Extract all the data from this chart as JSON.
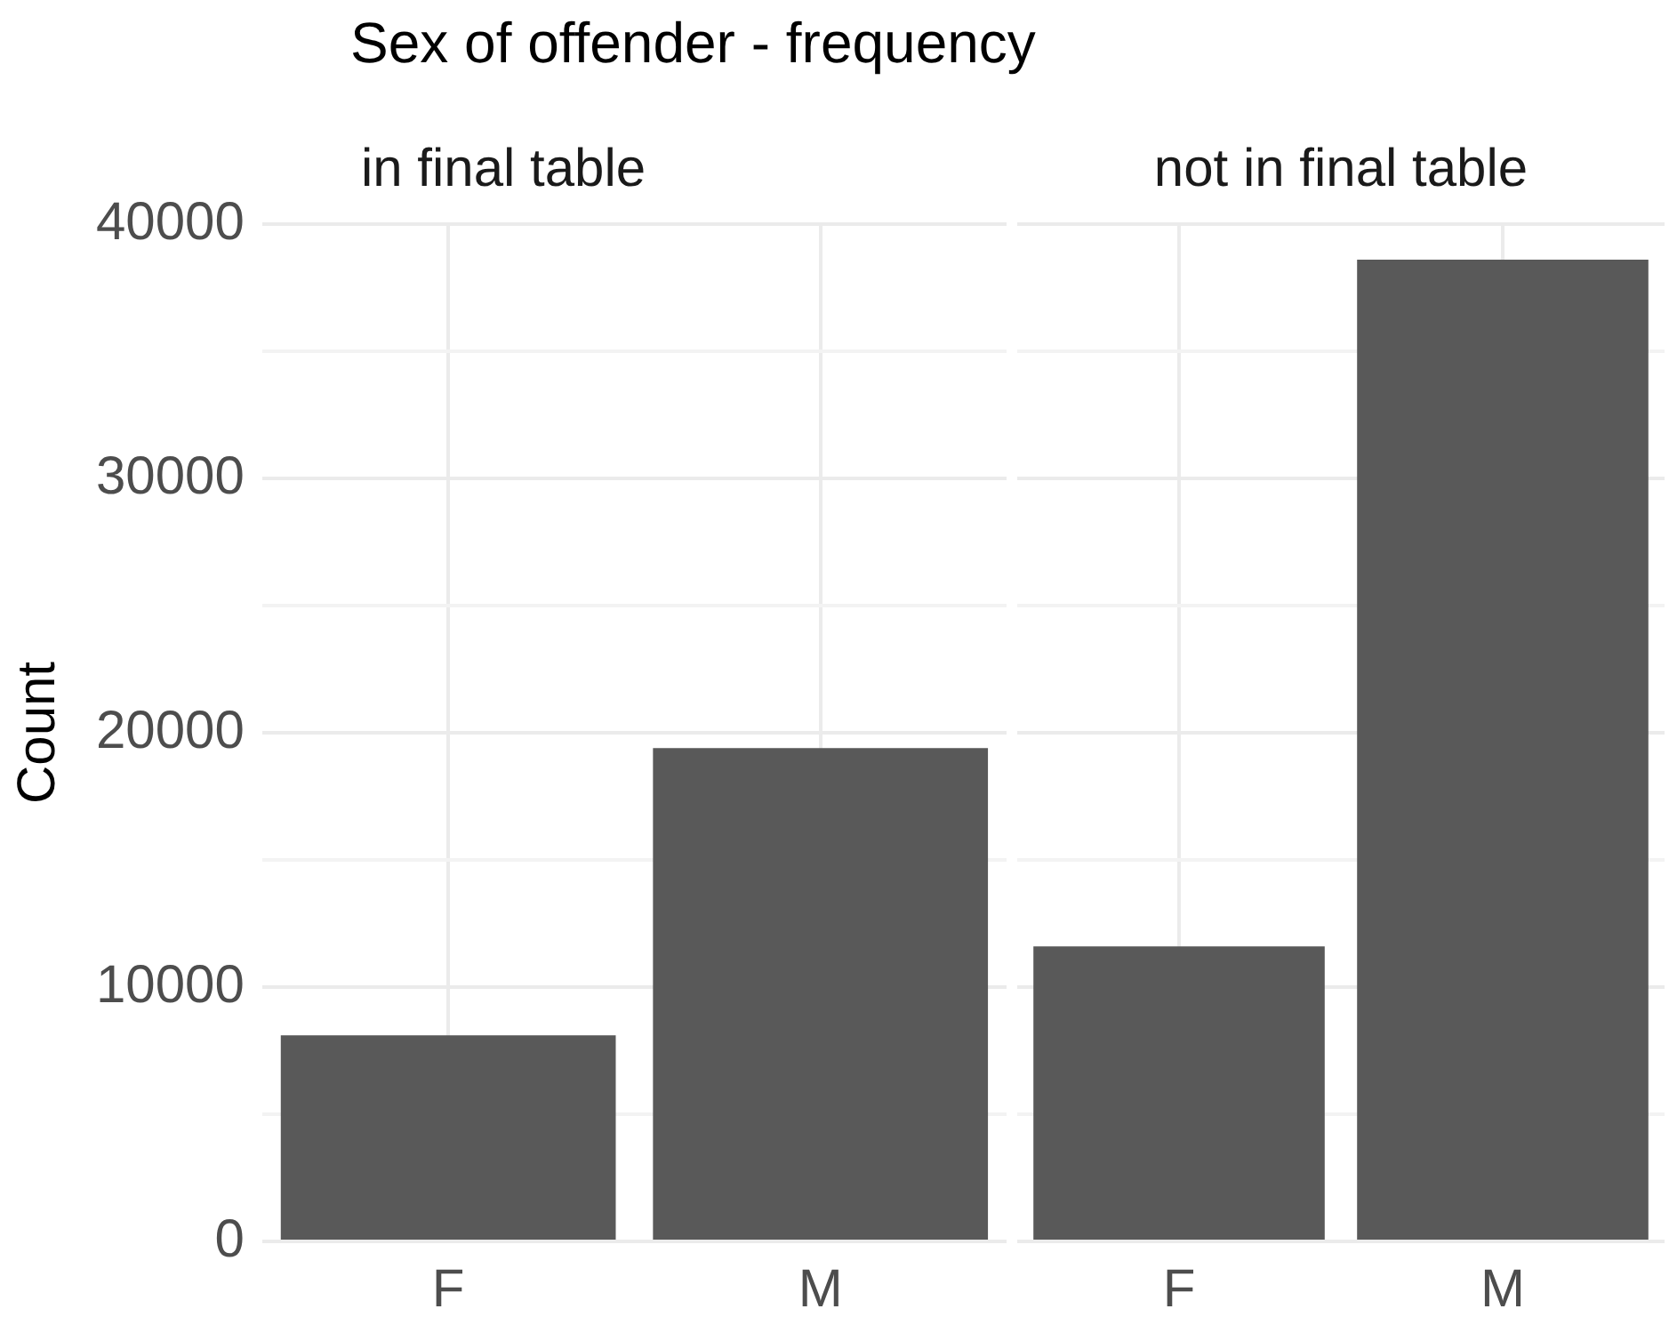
{
  "chart_data": [
    {
      "type": "bar",
      "title": "Sex of offender - frequency",
      "subtitle": "in final table",
      "ylabel": "Count",
      "categories": [
        "F",
        "M"
      ],
      "values": [
        8100,
        19400
      ],
      "color": "#595959",
      "ylim": [
        0,
        40000
      ],
      "yticks": [
        0,
        {
          "value": 5000,
          "label": null
        },
        10000,
        {
          "value": 15000,
          "label": null
        },
        20000,
        {
          "value": 25000,
          "label": null
        },
        30000,
        {
          "value": 35000,
          "label": null
        },
        40000
      ],
      "grid": true
    },
    {
      "type": "bar",
      "subtitle": "not in final table",
      "categories": [
        "F",
        "M"
      ],
      "values": [
        11600,
        38600
      ],
      "color": "#595959",
      "ylim": [
        0,
        40000
      ],
      "yticks": [
        0,
        {
          "value": 5000,
          "label": null
        },
        10000,
        {
          "value": 15000,
          "label": null
        },
        20000,
        {
          "value": 25000,
          "label": null
        },
        30000,
        {
          "value": 35000,
          "label": null
        },
        40000
      ],
      "grid": true,
      "tick_labels": "x"
    }
  ]
}
